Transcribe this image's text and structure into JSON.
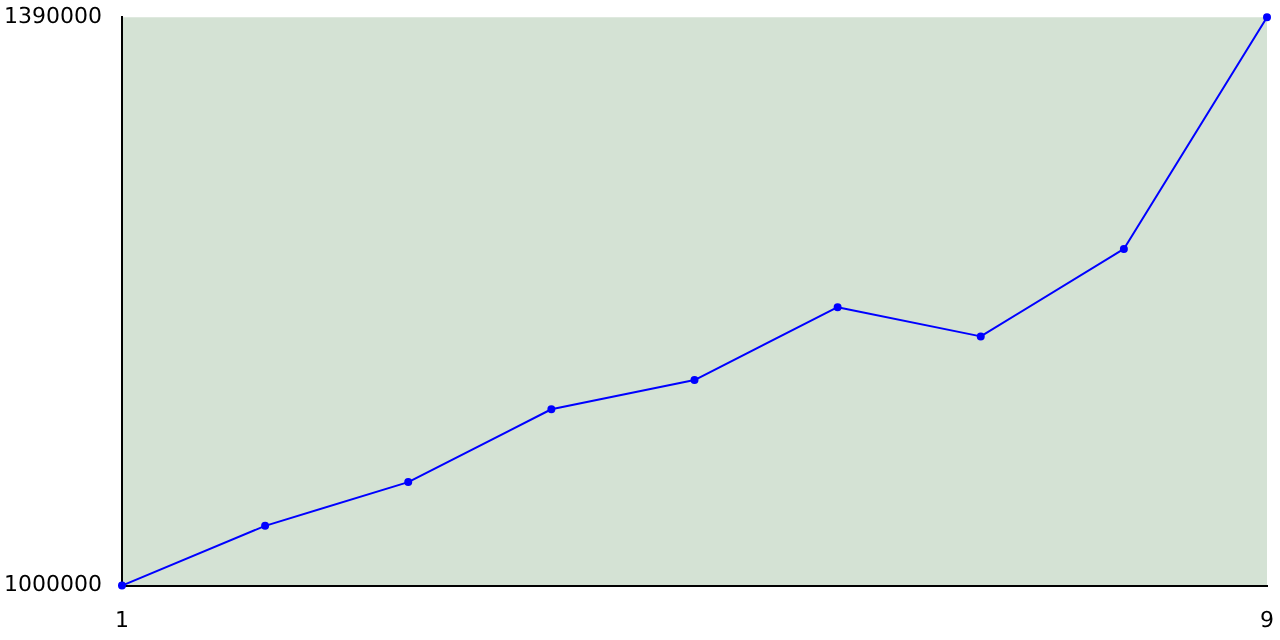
{
  "chart_data": {
    "type": "line",
    "x": [
      1,
      2,
      3,
      4,
      5,
      6,
      7,
      8,
      9
    ],
    "series": [
      {
        "color": "#0000ff",
        "values": [
          1000000,
          1041000,
          1071000,
          1121000,
          1141000,
          1191000,
          1171000,
          1231000,
          1390000
        ]
      }
    ],
    "xlim": [
      1,
      9
    ],
    "xticks": [
      1,
      9
    ],
    "ylim": [
      1000000,
      1390000
    ],
    "yticks": [
      1000000,
      1390000
    ],
    "grid": false,
    "legend": false,
    "marker": "circle",
    "line_style": "solid"
  }
}
